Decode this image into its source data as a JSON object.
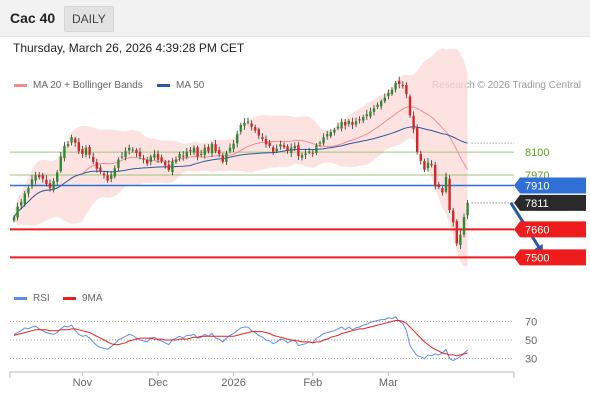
{
  "header": {
    "instrument": "Cac 40",
    "period": "DAILY"
  },
  "datetime": "Thursday, March 26, 2026 4:39:28 PM CET",
  "credit": "Research © 2026 Trading Central",
  "chart_data": [
    {
      "type": "candlestick",
      "legend": [
        {
          "name": "MA 20 + Bollinger Bands",
          "color": "#f08c8c"
        },
        {
          "name": "MA 50",
          "color": "#2c5aa0"
        }
      ],
      "x_tick_labels": [
        "Nov",
        "Dec",
        "2026",
        "Feb",
        "Mar"
      ],
      "x_tick_index": [
        19,
        40,
        61,
        83,
        104
      ],
      "price_range": [
        7360,
        8420
      ],
      "level_labels": [
        {
          "value": 8100,
          "label": "8100",
          "style": "green-text"
        },
        {
          "value": 7970,
          "label": "7970",
          "style": "green-text"
        },
        {
          "value": 7910,
          "label": "7910",
          "style": "blue-box"
        },
        {
          "value": 7811,
          "label": "7811",
          "style": "dark-box"
        },
        {
          "value": 7660,
          "label": "7660",
          "style": "red-box"
        },
        {
          "value": 7500,
          "label": "7500",
          "style": "red-box"
        }
      ],
      "levels": [
        {
          "value": 8100,
          "color": "#9fc37a"
        },
        {
          "value": 7970,
          "color": "#9fc37a"
        },
        {
          "value": 7910,
          "color": "#2f6fd6"
        },
        {
          "value": 7660,
          "color": "#ee1c1c"
        },
        {
          "value": 7500,
          "color": "#ee1c1c"
        }
      ],
      "arrow": {
        "from_index": 138,
        "from": 7811,
        "to_index": 147,
        "to": 7520
      },
      "close": [
        7730,
        7790,
        7815,
        7865,
        7895,
        7945,
        7968,
        7958,
        7948,
        7918,
        7895,
        7935,
        7985,
        8075,
        8135,
        8145,
        8185,
        8155,
        8105,
        8090,
        8125,
        8085,
        8045,
        8005,
        7988,
        7968,
        7938,
        7968,
        8008,
        8058,
        8075,
        8105,
        8125,
        8115,
        8095,
        8075,
        8058,
        8035,
        8075,
        8088,
        8058,
        8048,
        8025,
        7998,
        8045,
        8058,
        8090,
        8075,
        8102,
        8105,
        8125,
        8075,
        8090,
        8125,
        8105,
        8148,
        8105,
        8090,
        8045,
        8095,
        8125,
        8148,
        8205,
        8255,
        8268,
        8275,
        8245,
        8223,
        8195,
        8175,
        8145,
        8135,
        8103,
        8120,
        8145,
        8128,
        8108,
        8125,
        8135,
        8078,
        8083,
        8092,
        8103,
        8093,
        8138,
        8155,
        8185,
        8203,
        8215,
        8228,
        8245,
        8272,
        8252,
        8278,
        8255,
        8275,
        8285,
        8300,
        8315,
        8332,
        8350,
        8370,
        8390,
        8410,
        8438,
        8455,
        8495,
        8488,
        8478,
        8430,
        8310,
        8230,
        8100,
        8050,
        8000,
        8040,
        8025,
        7905,
        7900,
        7870,
        7960,
        7770,
        7700,
        7580,
        7630,
        7730,
        7811
      ]
    },
    {
      "type": "line",
      "series": [
        {
          "name": "RSI",
          "color": "#5b8ee6"
        },
        {
          "name": "9MA",
          "color": "#e62020"
        }
      ],
      "y_tick_labels": [
        "70",
        "50",
        "30"
      ],
      "y_tick_values": [
        70,
        50,
        30
      ],
      "ylim": [
        22,
        78
      ],
      "rsi": [
        56,
        58,
        60,
        63,
        62,
        64,
        65,
        62,
        60,
        58,
        57,
        56,
        58,
        62,
        65,
        64,
        66,
        60,
        56,
        54,
        55,
        52,
        48,
        44,
        42,
        41,
        40,
        43,
        46,
        50,
        52,
        54,
        56,
        55,
        52,
        50,
        49,
        48,
        52,
        53,
        50,
        49,
        47,
        45,
        50,
        52,
        54,
        52,
        55,
        55,
        56,
        52,
        53,
        56,
        54,
        57,
        52,
        51,
        48,
        52,
        55,
        57,
        60,
        63,
        64,
        64,
        60,
        58,
        55,
        53,
        50,
        49,
        46,
        48,
        51,
        50,
        47,
        49,
        50,
        44,
        45,
        46,
        48,
        47,
        52,
        54,
        57,
        58,
        59,
        60,
        62,
        64,
        61,
        64,
        61,
        63,
        64,
        66,
        67,
        69,
        70,
        71,
        72,
        72,
        74,
        73,
        75,
        70,
        68,
        60,
        44,
        38,
        33,
        32,
        30,
        34,
        33,
        35,
        34,
        36,
        40,
        30,
        28,
        30,
        32,
        36,
        39
      ],
      "ma9": [
        55,
        56,
        57,
        58,
        59,
        60,
        61,
        61,
        61,
        61,
        60,
        60,
        60,
        61,
        61,
        61,
        62,
        62,
        61,
        60,
        59,
        58,
        56,
        54,
        52,
        50,
        48,
        46,
        45,
        45,
        46,
        47,
        49,
        50,
        51,
        52,
        52,
        52,
        52,
        51,
        51,
        51,
        50,
        50,
        50,
        50,
        51,
        51,
        51,
        52,
        53,
        53,
        54,
        54,
        54,
        54,
        54,
        54,
        54,
        54,
        54,
        54,
        55,
        56,
        57,
        58,
        59,
        59,
        59,
        59,
        58,
        57,
        55,
        54,
        53,
        52,
        51,
        50,
        49,
        49,
        48,
        48,
        48,
        47,
        48,
        48,
        50,
        51,
        53,
        54,
        55,
        57,
        58,
        59,
        60,
        61,
        62,
        62,
        63,
        64,
        65,
        66,
        67,
        68,
        69,
        70,
        71,
        71,
        70,
        68,
        64,
        60,
        56,
        52,
        48,
        45,
        42,
        40,
        38,
        36,
        35,
        34,
        34,
        33,
        34,
        35,
        36
      ]
    }
  ]
}
